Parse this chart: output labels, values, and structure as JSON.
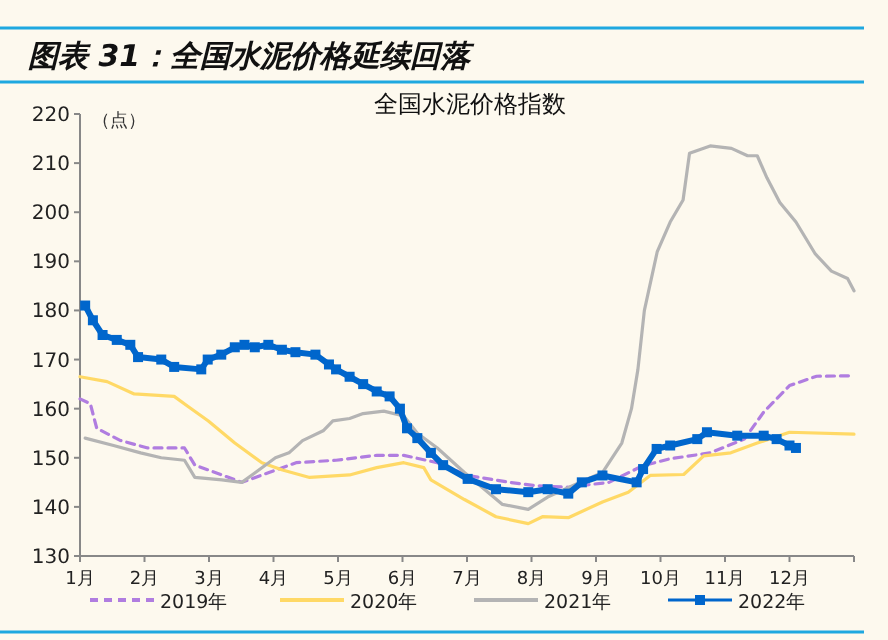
{
  "chart_data": {
    "type": "line",
    "title": "图表 31：全国水泥价格延续回落",
    "subtitle": "全国水泥价格指数",
    "ylabel": "（点）",
    "xlim": [
      1,
      13
    ],
    "xticks": [
      {
        "value": 1,
        "label": "1月"
      },
      {
        "value": 2,
        "label": "2月"
      },
      {
        "value": 3,
        "label": "3月"
      },
      {
        "value": 4,
        "label": "4月"
      },
      {
        "value": 5,
        "label": "5月"
      },
      {
        "value": 6,
        "label": "6月"
      },
      {
        "value": 7,
        "label": "7月"
      },
      {
        "value": 8,
        "label": "8月"
      },
      {
        "value": 9,
        "label": "9月"
      },
      {
        "value": 10,
        "label": "10月"
      },
      {
        "value": 11,
        "label": "11月"
      },
      {
        "value": 12,
        "label": "12月"
      },
      {
        "value": 13,
        "label": null
      }
    ],
    "ylim": [
      130,
      220
    ],
    "yticks": [
      130,
      140,
      150,
      160,
      170,
      180,
      190,
      200,
      210,
      220
    ],
    "grid": false,
    "legend": "bottom",
    "series": [
      {
        "name": "2019年",
        "color": "#b07de0",
        "line_style": "dashed",
        "marker": "none",
        "x": [
          1,
          1.16,
          1.26,
          1.63,
          2.05,
          2.62,
          2.78,
          3.2,
          3.51,
          3.93,
          4.35,
          4.97,
          5.6,
          6.02,
          6.54,
          7.01,
          7.66,
          8.08,
          8.57,
          9.2,
          9.73,
          10.15,
          10.77,
          11.3,
          11.6,
          12.0,
          12.42,
          13
        ],
        "values": [
          162,
          161,
          156,
          153.5,
          152,
          152,
          148.5,
          146.5,
          145,
          147,
          149,
          149.5,
          150.5,
          150.5,
          149,
          146.4,
          145,
          144.3,
          144,
          145,
          148.4,
          149.8,
          151,
          153.8,
          159.3,
          164.7,
          166.6,
          166.7
        ]
      },
      {
        "name": "2020年",
        "color": "#ffd966",
        "line_style": "solid",
        "marker": "none",
        "x": [
          1,
          1.42,
          1.84,
          2.46,
          2.67,
          2.99,
          3.4,
          3.82,
          4.14,
          4.56,
          5.18,
          5.6,
          6.02,
          6.33,
          6.44,
          6.96,
          7.45,
          7.95,
          8.17,
          8.57,
          9.1,
          9.5,
          9.84,
          10.36,
          10.67,
          11.09,
          11.5,
          12.0,
          13
        ],
        "values": [
          166.5,
          165.5,
          163,
          162.5,
          160.5,
          157.5,
          153,
          149,
          147.5,
          146,
          146.5,
          148,
          149,
          148,
          145.5,
          141.5,
          138,
          136.6,
          138,
          137.8,
          141,
          143,
          146.4,
          146.6,
          150.4,
          151,
          153,
          155.2,
          154.8
        ]
      },
      {
        "name": "2021年",
        "color": "#b4b4b4",
        "line_style": "solid",
        "marker": "none",
        "x": [
          1.08,
          1.52,
          1.94,
          2.26,
          2.62,
          2.78,
          3.2,
          3.51,
          3.72,
          4.03,
          4.24,
          4.45,
          4.77,
          4.92,
          5.18,
          5.39,
          5.71,
          6.02,
          6.23,
          6.54,
          6.96,
          7.55,
          7.95,
          8.25,
          8.67,
          9.1,
          9.4,
          9.55,
          9.65,
          9.75,
          9.95,
          10.15,
          10.35,
          10.45,
          10.77,
          11.1,
          11.35,
          11.5,
          11.65,
          11.85,
          12.1,
          12.4,
          12.65,
          12.9,
          13
        ],
        "values": [
          154,
          152.5,
          151,
          150,
          149.5,
          146,
          145.5,
          145,
          147,
          150,
          151,
          153.5,
          155.5,
          157.5,
          158,
          159,
          159.5,
          158.5,
          155,
          152,
          147,
          140.5,
          139.5,
          142,
          144.5,
          147,
          153,
          160,
          168,
          180,
          192,
          198,
          202.5,
          212,
          213.5,
          213,
          211.5,
          211.5,
          207,
          202,
          198,
          191.5,
          188,
          186.5,
          184
        ]
      },
      {
        "name": "2022年",
        "color": "#0066cc",
        "line_style": "solid",
        "marker": "square",
        "x": [
          1.08,
          1.2,
          1.35,
          1.57,
          1.78,
          1.9,
          2.26,
          2.46,
          2.88,
          2.98,
          3.19,
          3.4,
          3.55,
          3.71,
          3.92,
          4.13,
          4.34,
          4.65,
          4.86,
          4.97,
          5.18,
          5.39,
          5.6,
          5.8,
          5.96,
          6.07,
          6.23,
          6.44,
          6.63,
          7.01,
          7.45,
          7.95,
          8.25,
          8.57,
          8.78,
          9.1,
          9.63,
          9.73,
          9.94,
          10.15,
          10.57,
          10.72,
          11.19,
          11.6,
          11.8,
          12.0,
          12.1
        ],
        "values": [
          181,
          178,
          175,
          174,
          173,
          170.5,
          170,
          168.5,
          168,
          170,
          171,
          172.5,
          173,
          172.5,
          173,
          172,
          171.5,
          171,
          169,
          168,
          166.5,
          165,
          163.5,
          162.5,
          160,
          156,
          154,
          151,
          148.5,
          145.7,
          143.6,
          143,
          143.6,
          142.7,
          145,
          146.4,
          145,
          147.7,
          151.8,
          152.5,
          153.8,
          155.2,
          154.5,
          154.5,
          153.8,
          152.5,
          152
        ]
      }
    ]
  }
}
